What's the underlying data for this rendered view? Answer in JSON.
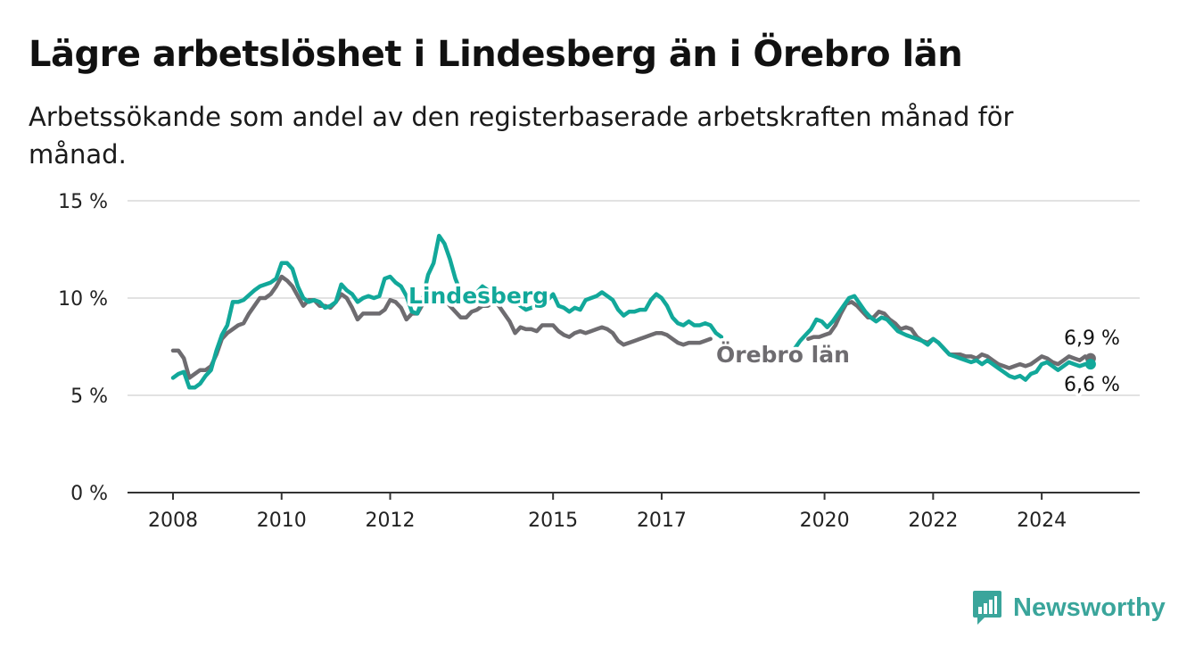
{
  "header": {
    "title": "Lägre arbetslöshet i Lindesberg än i Örebro län",
    "subtitle": "Arbetssökande som andel av den registerbaserade arbetskraften månad för månad."
  },
  "brand": {
    "name": "Newsworthy",
    "color": "#3aa59b",
    "icon": "bar-chart-icon"
  },
  "chart_data": {
    "type": "line",
    "title": "Lägre arbetslöshet i Lindesberg än i Örebro län",
    "subtitle": "Arbetssökande som andel av den registerbaserade arbetskraften månad för månad.",
    "xlabel": "",
    "ylabel": "",
    "x_ticks": [
      2008,
      2010,
      2012,
      2015,
      2017,
      2020,
      2022,
      2024
    ],
    "y_ticks": [
      "0 %",
      "5 %",
      "10 %",
      "15 %"
    ],
    "y_tick_values": [
      0,
      5,
      10,
      15
    ],
    "ylim": [
      0,
      15
    ],
    "xlim": [
      2007.75,
      2025.6
    ],
    "grid": true,
    "legend": "inline labels",
    "end_labels": {
      "Örebro län": "6,9 %",
      "Lindesberg": "6,6 %"
    },
    "series": [
      {
        "name": "Lindesberg",
        "color": "#12a89a",
        "points": [
          [
            2008.0,
            5.9
          ],
          [
            2008.1,
            6.1
          ],
          [
            2008.2,
            6.2
          ],
          [
            2008.3,
            5.4
          ],
          [
            2008.4,
            5.4
          ],
          [
            2008.5,
            5.6
          ],
          [
            2008.6,
            6.0
          ],
          [
            2008.7,
            6.3
          ],
          [
            2008.8,
            7.3
          ],
          [
            2008.9,
            8.1
          ],
          [
            2009.0,
            8.6
          ],
          [
            2009.1,
            9.8
          ],
          [
            2009.2,
            9.8
          ],
          [
            2009.3,
            9.9
          ],
          [
            2009.5,
            10.4
          ],
          [
            2009.6,
            10.6
          ],
          [
            2009.8,
            10.8
          ],
          [
            2009.9,
            11.0
          ],
          [
            2010.0,
            11.8
          ],
          [
            2010.1,
            11.8
          ],
          [
            2010.2,
            11.5
          ],
          [
            2010.3,
            10.6
          ],
          [
            2010.4,
            10.0
          ],
          [
            2010.5,
            9.8
          ],
          [
            2010.6,
            9.9
          ],
          [
            2010.7,
            9.8
          ],
          [
            2010.8,
            9.5
          ],
          [
            2010.9,
            9.6
          ],
          [
            2011.0,
            9.8
          ],
          [
            2011.1,
            10.7
          ],
          [
            2011.2,
            10.4
          ],
          [
            2011.3,
            10.2
          ],
          [
            2011.4,
            9.8
          ],
          [
            2011.5,
            10.0
          ],
          [
            2011.6,
            10.1
          ],
          [
            2011.7,
            10.0
          ],
          [
            2011.8,
            10.1
          ],
          [
            2011.9,
            11.0
          ],
          [
            2012.0,
            11.1
          ],
          [
            2012.1,
            10.8
          ],
          [
            2012.2,
            10.6
          ],
          [
            2012.3,
            10.1
          ],
          [
            2012.4,
            9.3
          ],
          [
            2012.5,
            9.2
          ],
          [
            2012.6,
            10.0
          ],
          [
            2012.7,
            11.2
          ],
          [
            2012.8,
            11.8
          ],
          [
            2012.9,
            13.2
          ],
          [
            2013.0,
            12.8
          ],
          [
            2013.1,
            12.0
          ],
          [
            2013.2,
            11.0
          ],
          [
            2013.3,
            10.3
          ],
          [
            2013.5,
            10.0
          ],
          [
            2013.7,
            10.6
          ],
          [
            2013.9,
            10.2
          ],
          [
            2014.1,
            10.0
          ],
          [
            2014.3,
            9.8
          ],
          [
            2014.5,
            9.4
          ],
          [
            2014.7,
            9.6
          ],
          [
            2014.9,
            9.9
          ],
          [
            2015.0,
            10.2
          ],
          [
            2015.1,
            9.6
          ],
          [
            2015.2,
            9.5
          ],
          [
            2015.3,
            9.3
          ],
          [
            2015.4,
            9.5
          ],
          [
            2015.5,
            9.4
          ],
          [
            2015.6,
            9.9
          ],
          [
            2015.8,
            10.1
          ],
          [
            2015.9,
            10.3
          ],
          [
            2016.0,
            10.1
          ],
          [
            2016.1,
            9.9
          ],
          [
            2016.2,
            9.4
          ],
          [
            2016.3,
            9.1
          ],
          [
            2016.4,
            9.3
          ],
          [
            2016.5,
            9.3
          ],
          [
            2016.6,
            9.4
          ],
          [
            2016.7,
            9.4
          ],
          [
            2016.8,
            9.9
          ],
          [
            2016.9,
            10.2
          ],
          [
            2017.0,
            10.0
          ],
          [
            2017.1,
            9.6
          ],
          [
            2017.2,
            9.0
          ],
          [
            2017.3,
            8.7
          ],
          [
            2017.4,
            8.6
          ],
          [
            2017.5,
            8.8
          ],
          [
            2017.6,
            8.6
          ],
          [
            2017.7,
            8.6
          ],
          [
            2017.8,
            8.7
          ],
          [
            2017.9,
            8.6
          ],
          [
            2018.0,
            8.2
          ],
          [
            2018.1,
            8.0
          ],
          null,
          [
            2019.45,
            7.4
          ],
          [
            2019.55,
            7.8
          ],
          [
            2019.65,
            8.1
          ],
          [
            2019.75,
            8.4
          ],
          [
            2019.85,
            8.9
          ],
          [
            2019.95,
            8.8
          ],
          [
            2020.05,
            8.5
          ],
          [
            2020.15,
            8.8
          ],
          [
            2020.25,
            9.2
          ],
          [
            2020.35,
            9.6
          ],
          [
            2020.45,
            10.0
          ],
          [
            2020.55,
            10.1
          ],
          [
            2020.65,
            9.7
          ],
          [
            2020.75,
            9.3
          ],
          [
            2020.85,
            9.0
          ],
          [
            2020.95,
            8.8
          ],
          [
            2021.05,
            9.0
          ],
          [
            2021.15,
            8.9
          ],
          [
            2021.25,
            8.6
          ],
          [
            2021.35,
            8.3
          ],
          [
            2021.5,
            8.1
          ],
          [
            2021.6,
            8.0
          ],
          [
            2021.7,
            7.9
          ],
          [
            2021.8,
            7.8
          ],
          [
            2021.9,
            7.6
          ],
          [
            2022.0,
            7.9
          ],
          [
            2022.1,
            7.7
          ],
          [
            2022.2,
            7.4
          ],
          [
            2022.3,
            7.1
          ],
          [
            2022.4,
            7.0
          ],
          [
            2022.5,
            6.9
          ],
          [
            2022.6,
            6.8
          ],
          [
            2022.7,
            6.7
          ],
          [
            2022.8,
            6.8
          ],
          [
            2022.9,
            6.6
          ],
          [
            2023.0,
            6.8
          ],
          [
            2023.1,
            6.6
          ],
          [
            2023.2,
            6.4
          ],
          [
            2023.3,
            6.2
          ],
          [
            2023.4,
            6.0
          ],
          [
            2023.5,
            5.9
          ],
          [
            2023.6,
            6.0
          ],
          [
            2023.7,
            5.8
          ],
          [
            2023.8,
            6.1
          ],
          [
            2023.9,
            6.2
          ],
          [
            2024.0,
            6.6
          ],
          [
            2024.1,
            6.7
          ],
          [
            2024.2,
            6.5
          ],
          [
            2024.3,
            6.3
          ],
          [
            2024.4,
            6.5
          ],
          [
            2024.5,
            6.7
          ],
          [
            2024.6,
            6.6
          ],
          [
            2024.7,
            6.5
          ],
          [
            2024.8,
            6.6
          ],
          [
            2024.9,
            6.6
          ]
        ]
      },
      {
        "name": "Örebro län",
        "color": "#6e6c70",
        "points": [
          [
            2008.0,
            7.3
          ],
          [
            2008.1,
            7.3
          ],
          [
            2008.2,
            6.9
          ],
          [
            2008.3,
            5.9
          ],
          [
            2008.4,
            6.1
          ],
          [
            2008.5,
            6.3
          ],
          [
            2008.6,
            6.3
          ],
          [
            2008.7,
            6.5
          ],
          [
            2008.8,
            7.1
          ],
          [
            2008.9,
            7.9
          ],
          [
            2009.0,
            8.2
          ],
          [
            2009.1,
            8.4
          ],
          [
            2009.2,
            8.6
          ],
          [
            2009.3,
            8.7
          ],
          [
            2009.4,
            9.2
          ],
          [
            2009.5,
            9.6
          ],
          [
            2009.6,
            10.0
          ],
          [
            2009.7,
            10.0
          ],
          [
            2009.8,
            10.2
          ],
          [
            2009.9,
            10.6
          ],
          [
            2010.0,
            11.1
          ],
          [
            2010.1,
            10.9
          ],
          [
            2010.2,
            10.6
          ],
          [
            2010.3,
            10.1
          ],
          [
            2010.4,
            9.6
          ],
          [
            2010.5,
            9.9
          ],
          [
            2010.6,
            9.9
          ],
          [
            2010.7,
            9.6
          ],
          [
            2010.8,
            9.6
          ],
          [
            2010.9,
            9.5
          ],
          [
            2011.0,
            9.8
          ],
          [
            2011.1,
            10.2
          ],
          [
            2011.2,
            10.0
          ],
          [
            2011.3,
            9.5
          ],
          [
            2011.4,
            8.9
          ],
          [
            2011.5,
            9.2
          ],
          [
            2011.6,
            9.2
          ],
          [
            2011.7,
            9.2
          ],
          [
            2011.8,
            9.2
          ],
          [
            2011.9,
            9.4
          ],
          [
            2012.0,
            9.9
          ],
          [
            2012.1,
            9.8
          ],
          [
            2012.2,
            9.5
          ],
          [
            2012.3,
            8.9
          ],
          [
            2012.4,
            9.2
          ],
          [
            2012.5,
            9.2
          ],
          [
            2012.6,
            9.7
          ],
          [
            2012.7,
            9.8
          ],
          [
            2012.8,
            10.0
          ],
          [
            2012.9,
            10.2
          ],
          [
            2013.0,
            10.0
          ],
          [
            2013.1,
            9.6
          ],
          [
            2013.2,
            9.3
          ],
          [
            2013.3,
            9.0
          ],
          [
            2013.4,
            9.0
          ],
          [
            2013.5,
            9.3
          ],
          [
            2013.6,
            9.4
          ],
          [
            2013.7,
            9.6
          ],
          [
            2013.8,
            9.6
          ],
          [
            2013.9,
            9.8
          ],
          [
            2014.0,
            9.6
          ],
          [
            2014.1,
            9.2
          ],
          [
            2014.2,
            8.8
          ],
          [
            2014.3,
            8.2
          ],
          [
            2014.4,
            8.5
          ],
          [
            2014.5,
            8.4
          ],
          [
            2014.6,
            8.4
          ],
          [
            2014.7,
            8.3
          ],
          [
            2014.8,
            8.6
          ],
          [
            2014.9,
            8.6
          ],
          [
            2015.0,
            8.6
          ],
          [
            2015.1,
            8.3
          ],
          [
            2015.2,
            8.1
          ],
          [
            2015.3,
            8.0
          ],
          [
            2015.4,
            8.2
          ],
          [
            2015.5,
            8.3
          ],
          [
            2015.6,
            8.2
          ],
          [
            2015.7,
            8.3
          ],
          [
            2015.8,
            8.4
          ],
          [
            2015.9,
            8.5
          ],
          [
            2016.0,
            8.4
          ],
          [
            2016.1,
            8.2
          ],
          [
            2016.2,
            7.8
          ],
          [
            2016.3,
            7.6
          ],
          [
            2016.4,
            7.7
          ],
          [
            2016.5,
            7.8
          ],
          [
            2016.6,
            7.9
          ],
          [
            2016.7,
            8.0
          ],
          [
            2016.8,
            8.1
          ],
          [
            2016.9,
            8.2
          ],
          [
            2017.0,
            8.2
          ],
          [
            2017.1,
            8.1
          ],
          [
            2017.2,
            7.9
          ],
          [
            2017.3,
            7.7
          ],
          [
            2017.4,
            7.6
          ],
          [
            2017.5,
            7.7
          ],
          [
            2017.6,
            7.7
          ],
          [
            2017.7,
            7.7
          ],
          [
            2017.8,
            7.8
          ],
          [
            2017.9,
            7.9
          ],
          null,
          [
            2019.7,
            7.9
          ],
          [
            2019.8,
            8.0
          ],
          [
            2019.9,
            8.0
          ],
          [
            2020.0,
            8.1
          ],
          [
            2020.1,
            8.2
          ],
          [
            2020.2,
            8.6
          ],
          [
            2020.3,
            9.2
          ],
          [
            2020.4,
            9.7
          ],
          [
            2020.5,
            9.8
          ],
          [
            2020.6,
            9.6
          ],
          [
            2020.7,
            9.3
          ],
          [
            2020.8,
            9.0
          ],
          [
            2020.9,
            9.0
          ],
          [
            2021.0,
            9.3
          ],
          [
            2021.1,
            9.2
          ],
          [
            2021.2,
            8.9
          ],
          [
            2021.3,
            8.7
          ],
          [
            2021.4,
            8.4
          ],
          [
            2021.5,
            8.5
          ],
          [
            2021.6,
            8.4
          ],
          [
            2021.7,
            8.0
          ],
          [
            2021.8,
            7.8
          ],
          [
            2021.9,
            7.7
          ],
          [
            2022.0,
            7.9
          ],
          [
            2022.1,
            7.7
          ],
          [
            2022.2,
            7.4
          ],
          [
            2022.3,
            7.1
          ],
          [
            2022.4,
            7.1
          ],
          [
            2022.5,
            7.1
          ],
          [
            2022.6,
            7.0
          ],
          [
            2022.7,
            7.0
          ],
          [
            2022.8,
            6.9
          ],
          [
            2022.9,
            7.1
          ],
          [
            2023.0,
            7.0
          ],
          [
            2023.1,
            6.8
          ],
          [
            2023.2,
            6.6
          ],
          [
            2023.3,
            6.5
          ],
          [
            2023.4,
            6.4
          ],
          [
            2023.5,
            6.5
          ],
          [
            2023.6,
            6.6
          ],
          [
            2023.7,
            6.5
          ],
          [
            2023.8,
            6.6
          ],
          [
            2023.9,
            6.8
          ],
          [
            2024.0,
            7.0
          ],
          [
            2024.1,
            6.9
          ],
          [
            2024.2,
            6.7
          ],
          [
            2024.3,
            6.6
          ],
          [
            2024.4,
            6.8
          ],
          [
            2024.5,
            7.0
          ],
          [
            2024.6,
            6.9
          ],
          [
            2024.7,
            6.8
          ],
          [
            2024.8,
            7.0
          ],
          [
            2024.9,
            6.9
          ]
        ]
      }
    ]
  }
}
